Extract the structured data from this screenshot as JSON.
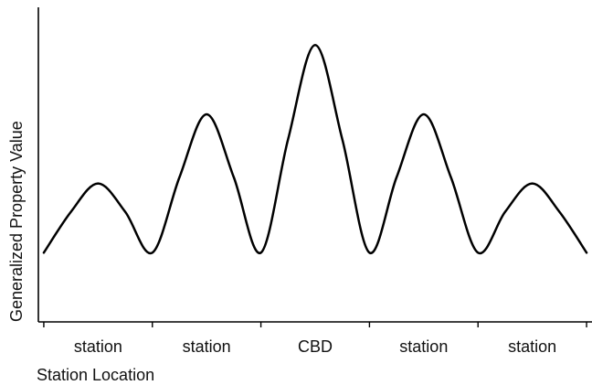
{
  "chart_data": {
    "type": "line",
    "title": "",
    "xlabel": "Station Location",
    "ylabel": "Generalized Property Value",
    "x_tick_labels": [
      "station",
      "station",
      "CBD",
      "station",
      "station"
    ],
    "x_ticks": [
      0,
      1,
      2,
      3,
      4,
      5
    ],
    "x_tick_label_positions": [
      0.5,
      1.5,
      2.5,
      3.5,
      4.5
    ],
    "xlim": [
      -0.05,
      5.05
    ],
    "ylim": [
      0,
      10
    ],
    "grid": false,
    "legend": "none",
    "series": [
      {
        "x": [
          0.0,
          0.25,
          0.5,
          0.75,
          1.0,
          1.25,
          1.5,
          1.75,
          2.0,
          2.25,
          2.5,
          2.75,
          3.0,
          3.25,
          3.5,
          3.75,
          4.0,
          4.25,
          4.5,
          4.75,
          5.0
        ],
        "values": [
          2.2,
          3.5,
          4.4,
          3.5,
          2.2,
          4.6,
          6.6,
          4.6,
          2.2,
          5.8,
          8.8,
          5.8,
          2.2,
          4.6,
          6.6,
          4.6,
          2.2,
          3.5,
          4.4,
          3.5,
          2.2
        ]
      }
    ],
    "line_color": "#000000"
  }
}
